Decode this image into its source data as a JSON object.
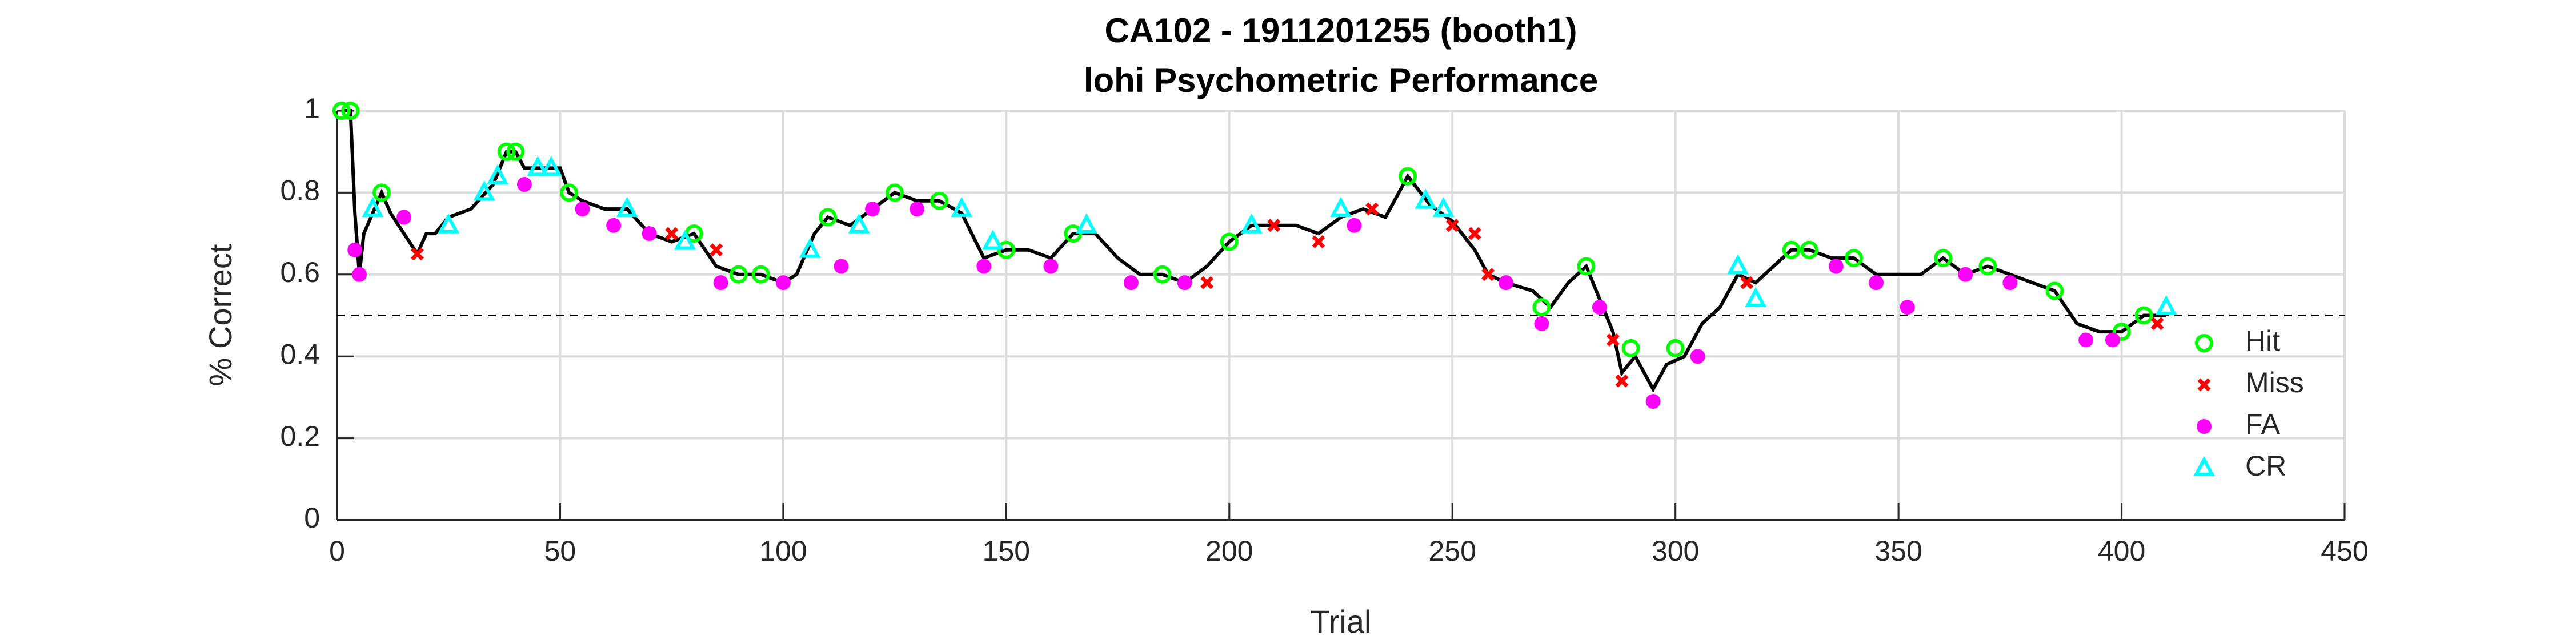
{
  "chart_data": {
    "type": "line",
    "title": "CA102 - 1911201255 (booth1)",
    "subtitle": "lohi Psychometric Performance",
    "x_label": "Trial",
    "y_label": "% Correct",
    "xlim": [
      0,
      450
    ],
    "xticks": [
      0,
      50,
      100,
      150,
      200,
      250,
      300,
      350,
      400,
      450
    ],
    "ylim": [
      0,
      1
    ],
    "yticks": [
      0,
      0.2,
      0.4,
      0.6,
      0.8,
      1
    ],
    "grid": true,
    "legend": "lower right",
    "reference_line": 0.5,
    "line": {
      "color": "#000000",
      "x": [
        1,
        3,
        4,
        5,
        6,
        8,
        10,
        12,
        15,
        18,
        20,
        22,
        25,
        30,
        35,
        38,
        40,
        42,
        45,
        50,
        52,
        55,
        60,
        65,
        70,
        75,
        80,
        85,
        90,
        95,
        100,
        103,
        107,
        110,
        115,
        120,
        125,
        130,
        135,
        140,
        145,
        150,
        155,
        160,
        165,
        170,
        175,
        180,
        185,
        190,
        195,
        200,
        205,
        210,
        215,
        220,
        225,
        230,
        235,
        240,
        245,
        250,
        255,
        258,
        262,
        268,
        272,
        276,
        280,
        283,
        286,
        288,
        291,
        295,
        298,
        302,
        306,
        310,
        314,
        318,
        322,
        326,
        330,
        335,
        340,
        345,
        350,
        355,
        360,
        365,
        370,
        375,
        380,
        385,
        390,
        395,
        400,
        405,
        410
      ],
      "values": [
        1,
        1,
        0.75,
        0.6,
        0.7,
        0.75,
        0.8,
        0.75,
        0.7,
        0.65,
        0.7,
        0.7,
        0.74,
        0.76,
        0.82,
        0.9,
        0.9,
        0.86,
        0.86,
        0.86,
        0.8,
        0.78,
        0.76,
        0.76,
        0.7,
        0.68,
        0.7,
        0.62,
        0.6,
        0.6,
        0.58,
        0.6,
        0.7,
        0.74,
        0.72,
        0.76,
        0.8,
        0.78,
        0.78,
        0.75,
        0.64,
        0.66,
        0.66,
        0.64,
        0.7,
        0.7,
        0.64,
        0.6,
        0.6,
        0.58,
        0.62,
        0.68,
        0.72,
        0.72,
        0.72,
        0.7,
        0.74,
        0.76,
        0.74,
        0.84,
        0.77,
        0.73,
        0.66,
        0.6,
        0.58,
        0.56,
        0.52,
        0.58,
        0.62,
        0.54,
        0.46,
        0.36,
        0.4,
        0.32,
        0.38,
        0.4,
        0.48,
        0.52,
        0.6,
        0.58,
        0.62,
        0.66,
        0.66,
        0.64,
        0.64,
        0.6,
        0.6,
        0.6,
        0.64,
        0.6,
        0.62,
        0.6,
        0.58,
        0.56,
        0.48,
        0.46,
        0.46,
        0.5,
        0.5
      ]
    },
    "series": [
      {
        "name": "Hit",
        "color": "#00ff00",
        "marker": "open-circle",
        "x": [
          1,
          3,
          10,
          38,
          40,
          52,
          80,
          90,
          95,
          110,
          125,
          135,
          150,
          165,
          185,
          200,
          240,
          270,
          280,
          290,
          300,
          326,
          330,
          340,
          360,
          370,
          385,
          400,
          405
        ],
        "values": [
          1,
          1,
          0.8,
          0.9,
          0.9,
          0.8,
          0.7,
          0.6,
          0.6,
          0.74,
          0.8,
          0.78,
          0.66,
          0.7,
          0.6,
          0.68,
          0.84,
          0.52,
          0.62,
          0.42,
          0.42,
          0.66,
          0.66,
          0.64,
          0.64,
          0.62,
          0.56,
          0.46,
          0.5
        ]
      },
      {
        "name": "Miss",
        "color": "#ff0000",
        "marker": "x",
        "x": [
          18,
          75,
          85,
          195,
          210,
          220,
          232,
          250,
          255,
          258,
          286,
          288,
          316,
          408
        ],
        "values": [
          0.65,
          0.7,
          0.66,
          0.58,
          0.72,
          0.68,
          0.76,
          0.72,
          0.7,
          0.6,
          0.44,
          0.34,
          0.58,
          0.48
        ]
      },
      {
        "name": "FA",
        "color": "#ff00ff",
        "marker": "filled-circle",
        "x": [
          4,
          5,
          15,
          42,
          55,
          62,
          70,
          86,
          100,
          113,
          120,
          130,
          145,
          160,
          178,
          190,
          228,
          262,
          270,
          283,
          295,
          305,
          336,
          345,
          352,
          365,
          375,
          392,
          398
        ],
        "values": [
          0.66,
          0.6,
          0.74,
          0.82,
          0.76,
          0.72,
          0.7,
          0.58,
          0.58,
          0.62,
          0.76,
          0.76,
          0.62,
          0.62,
          0.58,
          0.58,
          0.72,
          0.58,
          0.48,
          0.52,
          0.29,
          0.4,
          0.62,
          0.58,
          0.52,
          0.6,
          0.58,
          0.44,
          0.44
        ]
      },
      {
        "name": "CR",
        "color": "#00ffff",
        "marker": "open-triangle",
        "x": [
          8,
          25,
          33,
          36,
          45,
          48,
          65,
          78,
          106,
          117,
          140,
          147,
          168,
          205,
          225,
          244,
          248,
          314,
          318,
          410
        ],
        "values": [
          0.76,
          0.72,
          0.8,
          0.84,
          0.86,
          0.86,
          0.76,
          0.68,
          0.66,
          0.72,
          0.76,
          0.68,
          0.72,
          0.72,
          0.76,
          0.78,
          0.76,
          0.62,
          0.54,
          0.52
        ]
      }
    ]
  }
}
